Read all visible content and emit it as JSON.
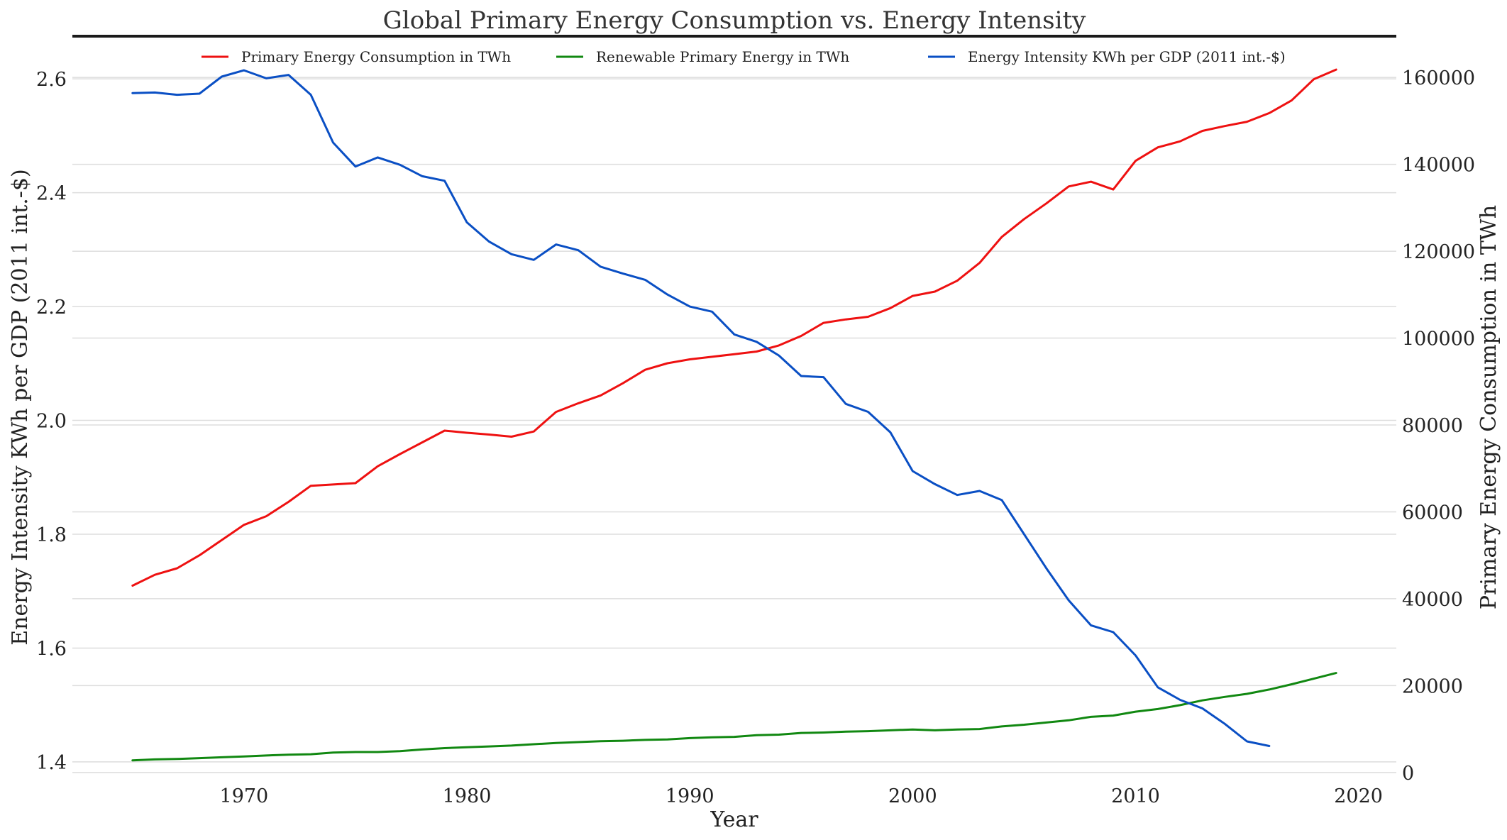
{
  "chart_data": {
    "type": "line",
    "title": "Global Primary Energy Consumption vs. Energy Intensity",
    "xlabel": "Year",
    "ylabel_left": "Energy Intensity KWh per GDP (2011 int.-$)",
    "ylabel_right": "Primary Energy Consumption in TWh",
    "xlim": [
      1962.3,
      2021.7
    ],
    "ylim_left": [
      1.37,
      2.675
    ],
    "ylim_right": [
      -1500,
      169500
    ],
    "x_ticks": [
      "1970",
      "1980",
      "1990",
      "2000",
      "2010",
      "2020"
    ],
    "y_ticks_left": [
      "1.4",
      "1.6",
      "1.8",
      "2.0",
      "2.2",
      "2.4",
      "2.6"
    ],
    "y_ticks_right": [
      "0",
      "20000",
      "40000",
      "60000",
      "80000",
      "100000",
      "120000",
      "140000",
      "160000"
    ],
    "grid": true,
    "legend_position": "top-center",
    "series": [
      {
        "name": "Primary Energy Consumption in TWh",
        "axis": "right",
        "color": "#ee1111",
        "x": [
          1965,
          1966,
          1967,
          1968,
          1969,
          1970,
          1971,
          1972,
          1973,
          1974,
          1975,
          1976,
          1977,
          1978,
          1979,
          1980,
          1981,
          1982,
          1983,
          1984,
          1985,
          1986,
          1987,
          1988,
          1989,
          1990,
          1991,
          1992,
          1993,
          1994,
          1995,
          1996,
          1997,
          1998,
          1999,
          2000,
          2001,
          2002,
          2003,
          2004,
          2005,
          2006,
          2007,
          2008,
          2009,
          2010,
          2011,
          2012,
          2013,
          2014,
          2015,
          2016,
          2017,
          2018,
          2019
        ],
        "values": [
          43000,
          45500,
          47000,
          50000,
          53500,
          57000,
          59000,
          62300,
          66000,
          66300,
          66600,
          70500,
          73300,
          76000,
          78700,
          78200,
          77800,
          77300,
          78500,
          83000,
          85000,
          86800,
          89600,
          92700,
          94200,
          95100,
          95700,
          96300,
          96900,
          98300,
          100500,
          103500,
          104300,
          104900,
          106900,
          109700,
          110700,
          113200,
          117300,
          123300,
          127400,
          131000,
          134900,
          136000,
          134200,
          140800,
          143900,
          145300,
          147700,
          148800,
          149800,
          151800,
          154700,
          159600,
          161800
        ]
      },
      {
        "name": "Renewable Primary Energy in TWh",
        "axis": "right",
        "color": "#118811",
        "x": [
          1965,
          1966,
          1967,
          1968,
          1969,
          1970,
          1971,
          1972,
          1973,
          1974,
          1975,
          1976,
          1977,
          1978,
          1979,
          1980,
          1981,
          1982,
          1983,
          1984,
          1985,
          1986,
          1987,
          1988,
          1989,
          1990,
          1991,
          1992,
          1993,
          1994,
          1995,
          1996,
          1997,
          1998,
          1999,
          2000,
          2001,
          2002,
          2003,
          2004,
          2005,
          2006,
          2007,
          2008,
          2009,
          2010,
          2011,
          2012,
          2013,
          2014,
          2015,
          2016,
          2017,
          2018,
          2019
        ],
        "values": [
          2800,
          3000,
          3100,
          3300,
          3500,
          3700,
          3900,
          4100,
          4200,
          4600,
          4700,
          4700,
          4900,
          5300,
          5600,
          5800,
          6000,
          6200,
          6500,
          6800,
          7000,
          7200,
          7300,
          7500,
          7600,
          7900,
          8100,
          8200,
          8600,
          8700,
          9100,
          9200,
          9400,
          9500,
          9700,
          9900,
          9700,
          9900,
          10000,
          10600,
          11000,
          11500,
          12000,
          12800,
          13100,
          14000,
          14600,
          15500,
          16600,
          17400,
          18100,
          19100,
          20300,
          21600,
          22900
        ]
      },
      {
        "name": "Energy Intensity KWh per GDP (2011 int.-$)",
        "axis": "left",
        "color": "#0a4fc4",
        "x": [
          1965,
          1966,
          1967,
          1968,
          1969,
          1970,
          1971,
          1972,
          1973,
          1974,
          1975,
          1976,
          1977,
          1978,
          1979,
          1980,
          1981,
          1982,
          1983,
          1984,
          1985,
          1986,
          1987,
          1988,
          1989,
          1990,
          1991,
          1992,
          1993,
          1994,
          1995,
          1996,
          1997,
          1998,
          1999,
          2000,
          2001,
          2002,
          2003,
          2004,
          2005,
          2006,
          2007,
          2008,
          2009,
          2010,
          2011,
          2012,
          2013,
          2014,
          2015,
          2016
        ],
        "values": [
          2.575,
          2.576,
          2.572,
          2.574,
          2.604,
          2.615,
          2.601,
          2.607,
          2.572,
          2.488,
          2.446,
          2.462,
          2.449,
          2.429,
          2.421,
          2.348,
          2.314,
          2.292,
          2.282,
          2.309,
          2.299,
          2.27,
          2.258,
          2.247,
          2.221,
          2.2,
          2.191,
          2.151,
          2.138,
          2.114,
          2.078,
          2.076,
          2.029,
          2.015,
          1.979,
          1.911,
          1.888,
          1.869,
          1.876,
          1.86,
          1.8,
          1.74,
          1.684,
          1.64,
          1.628,
          1.587,
          1.531,
          1.509,
          1.494,
          1.467,
          1.436,
          1.428
        ]
      }
    ]
  }
}
